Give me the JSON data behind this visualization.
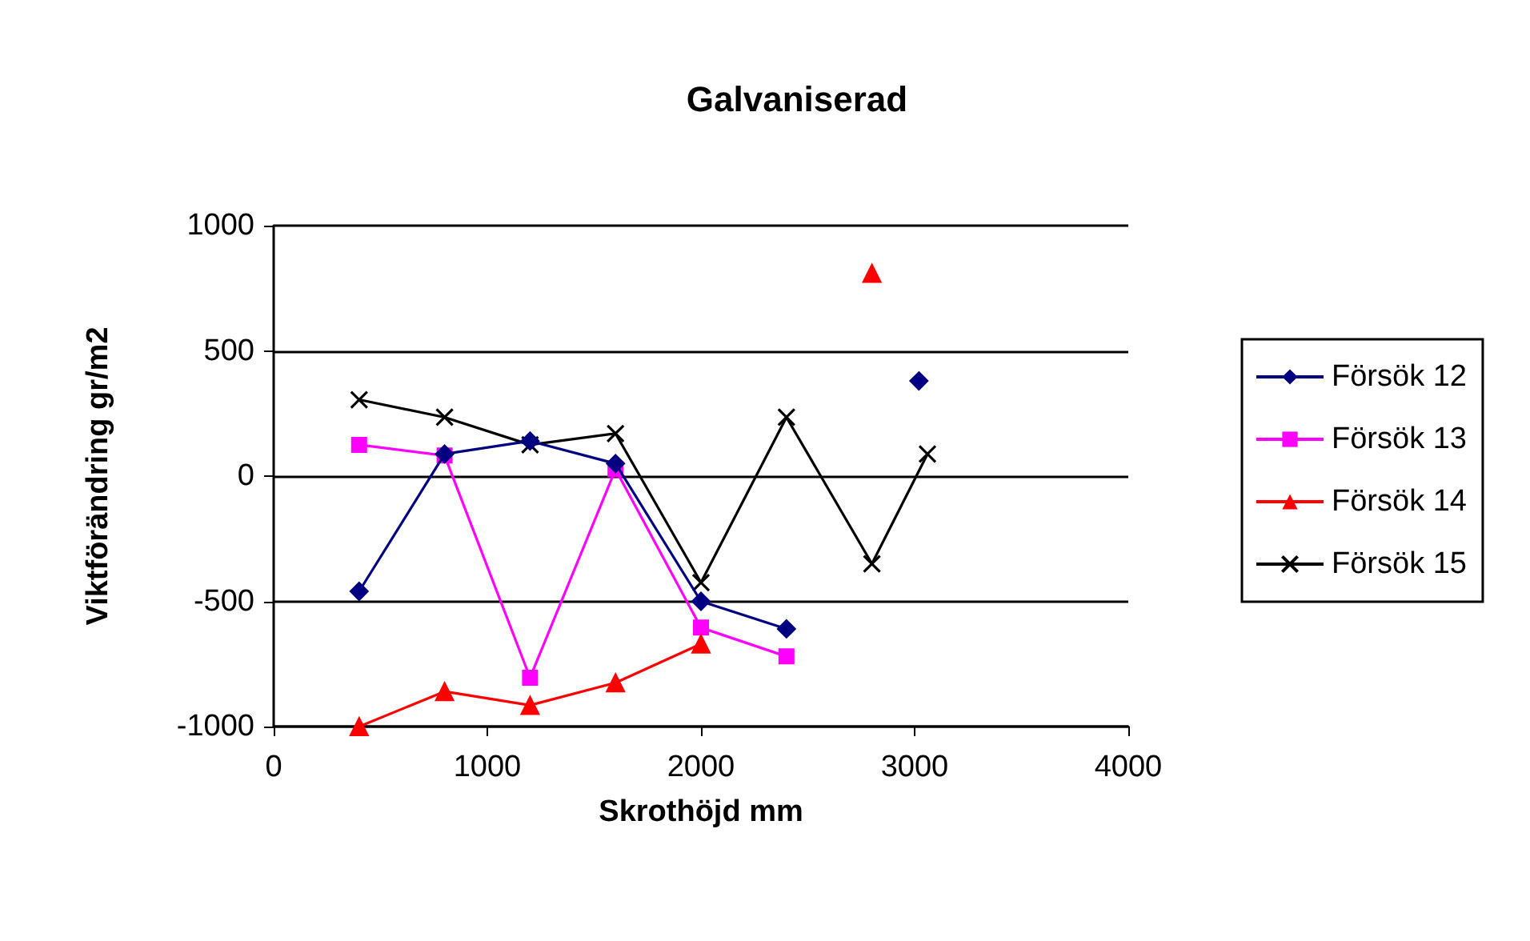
{
  "chart_data": {
    "type": "line",
    "title": "Galvaniserad",
    "xlabel": "Skrothöjd mm",
    "ylabel": "Viktförändring gr/m2",
    "xlim": [
      0,
      4000
    ],
    "xticks": [
      0,
      1000,
      2000,
      3000,
      4000
    ],
    "ylim": [
      -1000,
      1000
    ],
    "yticks": [
      -1000,
      -500,
      0,
      500,
      1000
    ],
    "grid": "y",
    "legend": "right",
    "series": [
      {
        "name": "Försök 12",
        "color": "#000080",
        "marker": "diamond",
        "x": [
          400,
          800,
          1200,
          1600,
          2000,
          2400,
          2800,
          3020
        ],
        "values": [
          -460,
          88,
          140,
          50,
          -500,
          -610,
          null,
          380
        ]
      },
      {
        "name": "Försök 13",
        "color": "#ff00ff",
        "marker": "square",
        "x": [
          400,
          800,
          1200,
          1600,
          2000,
          2400
        ],
        "values": [
          125,
          82,
          -805,
          27,
          -605,
          -720
        ]
      },
      {
        "name": "Försök 14",
        "color": "#ff0000",
        "marker": "triangle",
        "x": [
          400,
          800,
          1200,
          1600,
          2000,
          2400,
          2800
        ],
        "values": [
          -1000,
          -860,
          -915,
          -825,
          -670,
          null,
          810
        ]
      },
      {
        "name": "Försök 15",
        "color": "#000000",
        "marker": "cross",
        "x": [
          400,
          800,
          1200,
          1600,
          2000,
          2400,
          2800,
          3060
        ],
        "values": [
          305,
          235,
          125,
          170,
          -425,
          235,
          -350,
          88
        ]
      }
    ]
  }
}
